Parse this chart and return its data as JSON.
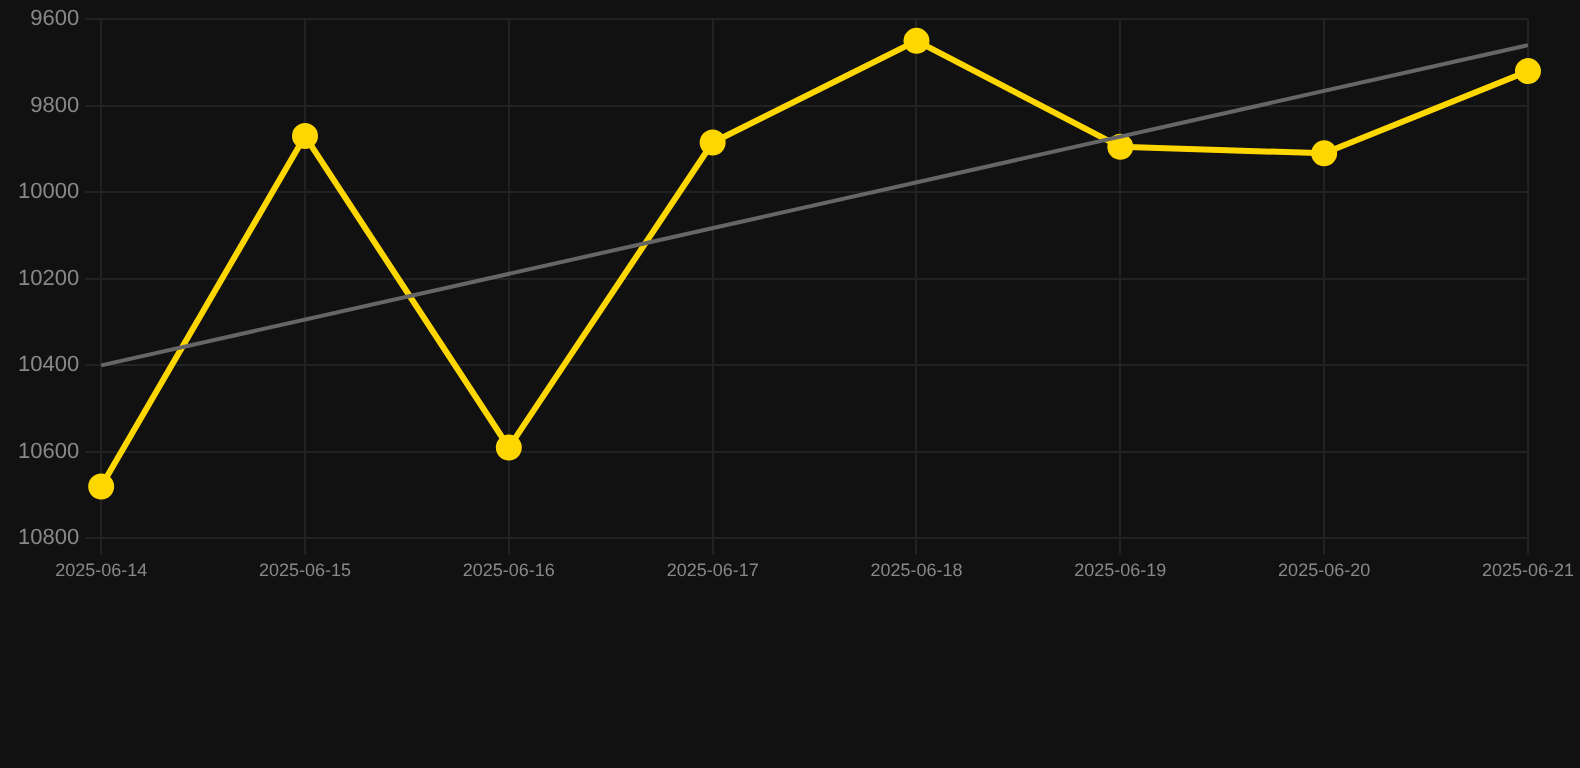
{
  "chart_data": {
    "type": "line",
    "categories": [
      "2025-06-14",
      "2025-06-15",
      "2025-06-16",
      "2025-06-17",
      "2025-06-18",
      "2025-06-19",
      "2025-06-20",
      "2025-06-21"
    ],
    "series": [
      {
        "color": "#ffd700",
        "values": [
          10680,
          9870,
          10590,
          9885,
          9650,
          9895,
          9910,
          9720
        ],
        "marker": "circle"
      },
      {
        "type": "line",
        "color": "#666666",
        "values": [
          10400,
          null,
          null,
          null,
          null,
          null,
          null,
          9660
        ],
        "marker": "none"
      }
    ],
    "ylim": [
      10800,
      9600
    ],
    "yticks": [
      9600,
      9800,
      10000,
      10200,
      10400,
      10600,
      10800
    ],
    "grid": true,
    "legend": false
  }
}
